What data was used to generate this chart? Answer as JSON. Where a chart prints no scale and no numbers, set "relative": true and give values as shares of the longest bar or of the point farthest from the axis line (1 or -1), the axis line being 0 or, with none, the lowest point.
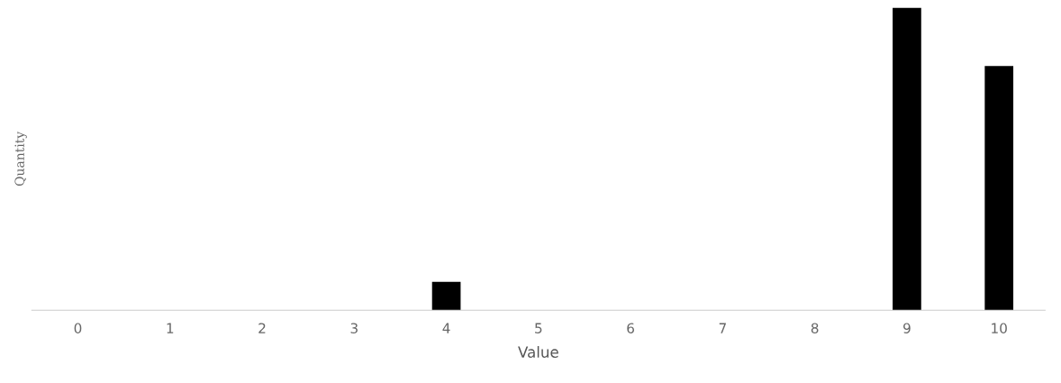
{
  "chart_data": {
    "type": "bar",
    "xlabel": "Value",
    "ylabel": "Quantity",
    "relative": true,
    "categories": [
      "0",
      "1",
      "2",
      "3",
      "4",
      "5",
      "6",
      "7",
      "8",
      "9",
      "10"
    ],
    "values": [
      0,
      0,
      0,
      0,
      0.094,
      0,
      0,
      0,
      0,
      1,
      0.807
    ],
    "color": "#000000",
    "grid": false,
    "legend": false
  }
}
